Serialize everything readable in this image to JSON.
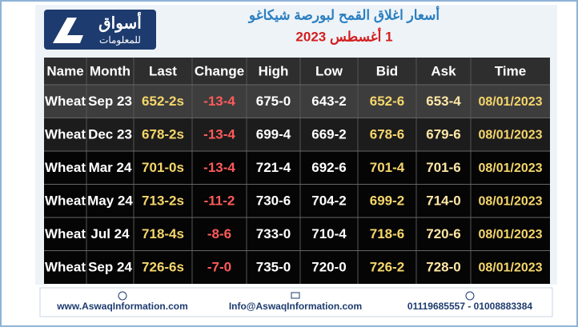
{
  "header": {
    "logo_main": "أسواق",
    "logo_sub": "للمعلومات",
    "title": "أسعار اغلاق القمح لبورصة شيكاغو",
    "date": "1 أغسطس 2023"
  },
  "table": {
    "columns": [
      "Name",
      "Month",
      "Last",
      "Change",
      "High",
      "Low",
      "Bid",
      "Ask",
      "Time"
    ],
    "rows": [
      [
        "Wheat",
        "Sep 23",
        "652-2s",
        "-13-4",
        "675-0",
        "643-2",
        "652-6",
        "653-4",
        "08/01/2023"
      ],
      [
        "Wheat",
        "Dec 23",
        "678-2s",
        "-13-4",
        "699-4",
        "669-2",
        "678-6",
        "679-6",
        "08/01/2023"
      ],
      [
        "Wheat",
        "Mar 24",
        "701-0s",
        "-13-4",
        "721-4",
        "692-6",
        "701-4",
        "701-6",
        "08/01/2023"
      ],
      [
        "Wheat",
        "May 24",
        "713-2s",
        "-11-2",
        "730-6",
        "704-2",
        "699-2",
        "714-0",
        "08/01/2023"
      ],
      [
        "Wheat",
        "Jul 24",
        "718-4s",
        "-8-6",
        "733-0",
        "710-4",
        "718-6",
        "720-6",
        "08/01/2023"
      ],
      [
        "Wheat",
        "Sep 24",
        "726-6s",
        "-7-0",
        "735-0",
        "720-0",
        "726-2",
        "728-0",
        "08/01/2023"
      ]
    ]
  },
  "footer": {
    "website": "www.AswaqInformation.com",
    "email": "Info@AswaqInformation.com",
    "phones": "01119685557 - 01008883384"
  }
}
